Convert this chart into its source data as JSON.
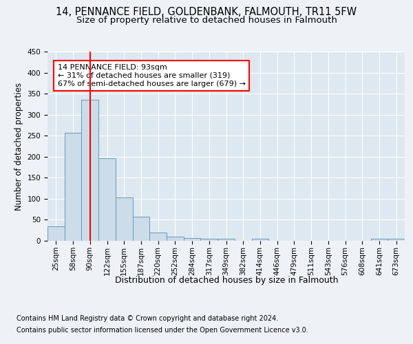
{
  "title1": "14, PENNANCE FIELD, GOLDENBANK, FALMOUTH, TR11 5FW",
  "title2": "Size of property relative to detached houses in Falmouth",
  "xlabel": "Distribution of detached houses by size in Falmouth",
  "ylabel": "Number of detached properties",
  "footnote1": "Contains HM Land Registry data © Crown copyright and database right 2024.",
  "footnote2": "Contains public sector information licensed under the Open Government Licence v3.0.",
  "categories": [
    "25sqm",
    "58sqm",
    "90sqm",
    "122sqm",
    "155sqm",
    "187sqm",
    "220sqm",
    "252sqm",
    "284sqm",
    "317sqm",
    "349sqm",
    "382sqm",
    "414sqm",
    "446sqm",
    "479sqm",
    "511sqm",
    "543sqm",
    "576sqm",
    "608sqm",
    "641sqm",
    "673sqm"
  ],
  "values": [
    35,
    257,
    335,
    197,
    103,
    57,
    20,
    10,
    7,
    5,
    5,
    0,
    5,
    0,
    0,
    0,
    0,
    0,
    0,
    5,
    5
  ],
  "bar_color": "#ccdce8",
  "bar_edge_color": "#6699bb",
  "bar_linewidth": 0.7,
  "red_line_index": 2,
  "annotation_text": "14 PENNANCE FIELD: 93sqm\n← 31% of detached houses are smaller (319)\n67% of semi-detached houses are larger (679) →",
  "annotation_box_color": "white",
  "annotation_box_edge_color": "red",
  "bg_color": "#eef2f7",
  "plot_bg_color": "#dde8f0",
  "grid_color": "white",
  "ylim": [
    0,
    450
  ],
  "title1_fontsize": 10.5,
  "title2_fontsize": 9.5,
  "xlabel_fontsize": 9,
  "ylabel_fontsize": 8.5,
  "tick_fontsize": 7.5,
  "annotation_fontsize": 8,
  "footnote_fontsize": 7
}
